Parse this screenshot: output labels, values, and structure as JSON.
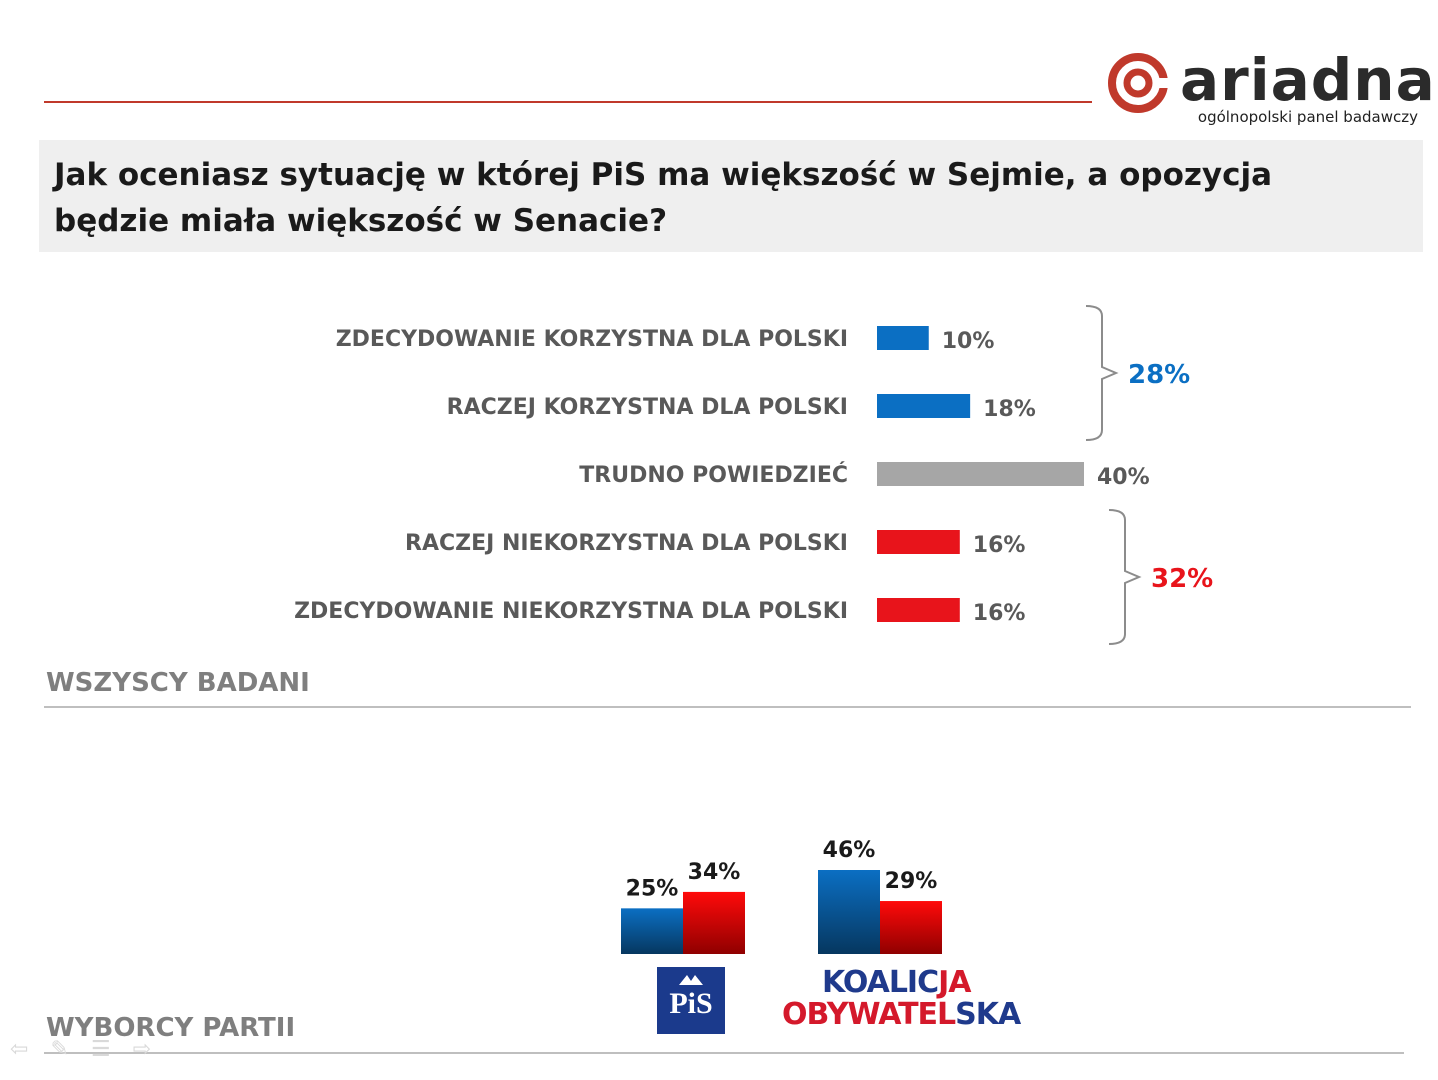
{
  "header": {
    "logo_word": "ariadna",
    "logo_tagline": "ogólnopolski panel badawczy",
    "title": "Jak oceniasz sytuację w której PiS ma większość w Sejmie, a opozycja będzie miała większość w Senacie?"
  },
  "sections": {
    "all_label": "WSZYSCY BADANI",
    "party_label": "WYBORCY PARTII"
  },
  "colors": {
    "blue": "#0b6fc3",
    "red": "#e8141b",
    "gray": "#a6a6a6",
    "accent_line": "#c0392b"
  },
  "chart_data": [
    {
      "type": "bar",
      "orientation": "horizontal",
      "categories": [
        "ZDECYDOWANIE KORZYSTNA DLA POLSKI",
        "RACZEJ KORZYSTNA DLA POLSKI",
        "TRUDNO POWIEDZIEĆ",
        "RACZEJ NIEKORZYSTNA DLA POLSKI",
        "ZDECYDOWANIE NIEKORZYSTNA DLA POLSKI"
      ],
      "values": [
        10,
        18,
        40,
        16,
        16
      ],
      "value_labels": [
        "10%",
        "18%",
        "40%",
        "16%",
        "16%"
      ],
      "bar_colors": [
        "blue",
        "blue",
        "gray",
        "red",
        "red"
      ],
      "brackets": [
        {
          "label": "28%",
          "color": "blue",
          "covers": [
            0,
            1
          ]
        },
        {
          "label": "32%",
          "color": "red",
          "covers": [
            3,
            4
          ]
        }
      ]
    },
    {
      "type": "bar",
      "groups": [
        "PiS",
        "KOALICJA OBYWATELSKA"
      ],
      "series": [
        {
          "values": [
            25,
            46
          ],
          "labels": [
            "25%",
            "46%"
          ],
          "color": "blue"
        },
        {
          "values": [
            34,
            29
          ],
          "labels": [
            "34%",
            "29%"
          ],
          "color": "red"
        }
      ]
    }
  ],
  "party_logos": {
    "pis": "PiS",
    "ko_line1_a": "KOALIC",
    "ko_line1_b": "JA",
    "ko_line2_a": "OBYWATEL",
    "ko_line2_b": "SKA"
  },
  "nav_icons": [
    "back-arrow-icon",
    "pen-icon",
    "menu-icon",
    "forward-arrow-icon"
  ]
}
